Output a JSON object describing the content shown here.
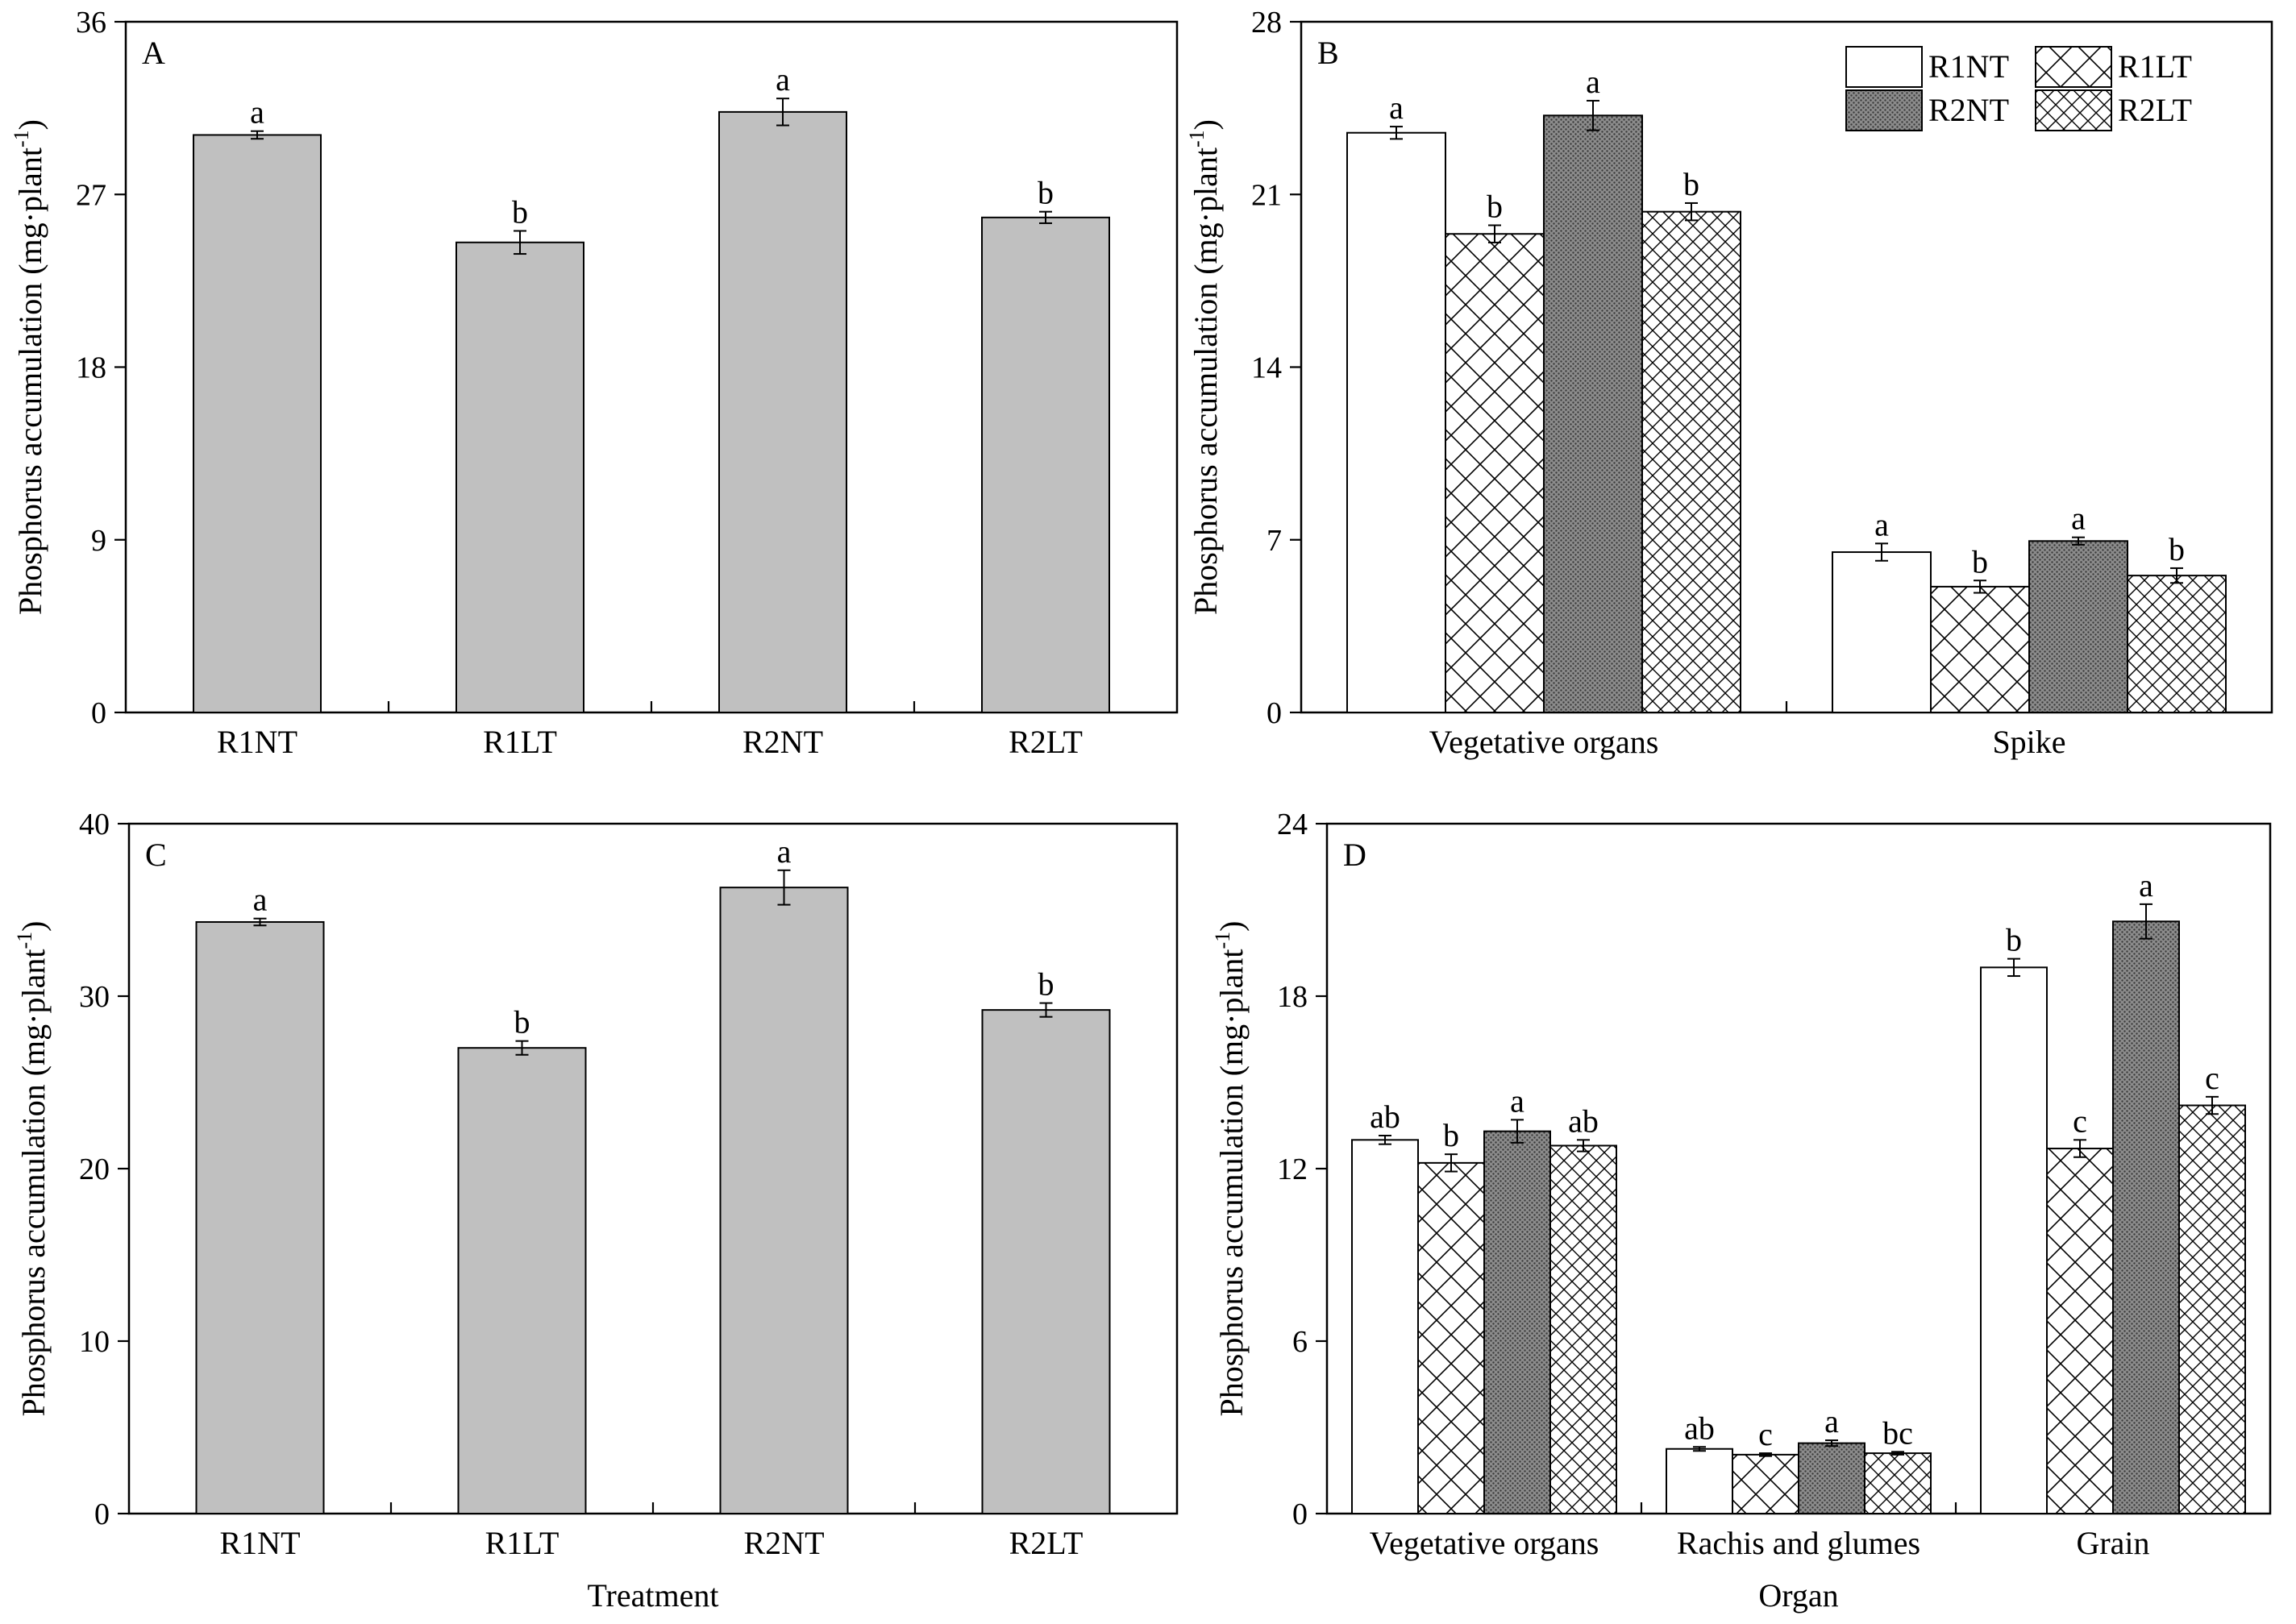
{
  "chart_data": [
    {
      "panel": "A",
      "type": "bar",
      "ylabel": "Phosphorus accumulation (mg·plant",
      "ylabel_sup": "-1",
      "ylabel_close": ")",
      "xlabel": "",
      "ylim": [
        0,
        36
      ],
      "yticks": [
        0,
        9,
        18,
        27,
        36
      ],
      "categories": [
        "R1NT",
        "R1LT",
        "R2NT",
        "R2LT"
      ],
      "series": [
        {
          "pattern": "gray",
          "values": [
            30.1,
            24.5,
            31.3,
            25.8
          ],
          "errors": [
            0.2,
            0.6,
            0.7,
            0.3
          ],
          "letters": [
            "a",
            "b",
            "a",
            "b"
          ]
        }
      ]
    },
    {
      "panel": "B",
      "type": "bar",
      "ylabel": "Phosphorus accumulation (mg·plant",
      "ylabel_sup": "-1",
      "ylabel_close": ")",
      "xlabel": "",
      "ylim": [
        0,
        28
      ],
      "yticks": [
        0,
        7,
        14,
        21,
        28
      ],
      "legend_position": "top-right",
      "categories": [
        "Vegetative organs",
        "Spike"
      ],
      "series": [
        {
          "name": "R1NT",
          "pattern": "white",
          "values": [
            23.5,
            6.5
          ],
          "errors": [
            0.25,
            0.35
          ],
          "letters": [
            "a",
            "a"
          ]
        },
        {
          "name": "R1LT",
          "pattern": "crosshatch-large",
          "values": [
            19.4,
            5.1
          ],
          "errors": [
            0.35,
            0.25
          ],
          "letters": [
            "b",
            "b"
          ]
        },
        {
          "name": "R2NT",
          "pattern": "dark-stipple",
          "values": [
            24.2,
            6.95
          ],
          "errors": [
            0.6,
            0.15
          ],
          "letters": [
            "a",
            "a"
          ]
        },
        {
          "name": "R2LT",
          "pattern": "crosshatch-small",
          "values": [
            20.3,
            5.55
          ],
          "errors": [
            0.35,
            0.3
          ],
          "letters": [
            "b",
            "b"
          ]
        }
      ]
    },
    {
      "panel": "C",
      "type": "bar",
      "ylabel": "Phosphorus accumulation (mg·plant",
      "ylabel_sup": "-1",
      "ylabel_close": ")",
      "xlabel": "Treatment",
      "ylim": [
        0,
        40
      ],
      "yticks": [
        0,
        10,
        20,
        30,
        40
      ],
      "categories": [
        "R1NT",
        "R1LT",
        "R2NT",
        "R2LT"
      ],
      "series": [
        {
          "pattern": "gray",
          "values": [
            34.3,
            27.0,
            36.3,
            29.2
          ],
          "errors": [
            0.2,
            0.4,
            1.0,
            0.4
          ],
          "letters": [
            "a",
            "b",
            "a",
            "b"
          ]
        }
      ]
    },
    {
      "panel": "D",
      "type": "bar",
      "ylabel": "Phosphorus accumulation (mg·plant",
      "ylabel_sup": "-1",
      "ylabel_close": ")",
      "xlabel": "Organ",
      "ylim": [
        0,
        24
      ],
      "yticks": [
        0,
        6,
        12,
        18,
        24
      ],
      "categories": [
        "Vegetative organs",
        "Rachis and glumes",
        "Grain"
      ],
      "series": [
        {
          "name": "R1NT",
          "pattern": "white",
          "values": [
            13.0,
            2.25,
            19.0
          ],
          "errors": [
            0.15,
            0.07,
            0.3
          ],
          "letters": [
            "ab",
            "ab",
            "b"
          ]
        },
        {
          "name": "R1LT",
          "pattern": "crosshatch-large",
          "values": [
            12.2,
            2.05,
            12.7
          ],
          "errors": [
            0.3,
            0.05,
            0.3
          ],
          "letters": [
            "b",
            "c",
            "c"
          ]
        },
        {
          "name": "R2NT",
          "pattern": "dark-stipple",
          "values": [
            13.3,
            2.45,
            20.6
          ],
          "errors": [
            0.4,
            0.1,
            0.6
          ],
          "letters": [
            "a",
            "a",
            "a"
          ]
        },
        {
          "name": "R2LT",
          "pattern": "crosshatch-small",
          "values": [
            12.8,
            2.1,
            14.2
          ],
          "errors": [
            0.2,
            0.05,
            0.3
          ],
          "letters": [
            "ab",
            "bc",
            "c"
          ]
        }
      ]
    }
  ],
  "colors": {
    "gray_bar": "#c0c0c0",
    "dark_bar": "#707070",
    "axis": "#000000",
    "background": "#ffffff"
  }
}
